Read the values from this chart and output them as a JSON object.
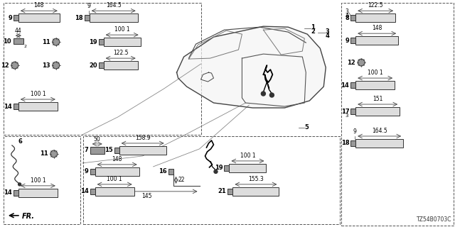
{
  "bg_color": "#ffffff",
  "diagram_code": "TZ54B0703C",
  "line_color": "#444444",
  "dash_color": "#666666",
  "connector_fill": "#999999",
  "connector_edge": "#333333",
  "text_color": "#000000"
}
